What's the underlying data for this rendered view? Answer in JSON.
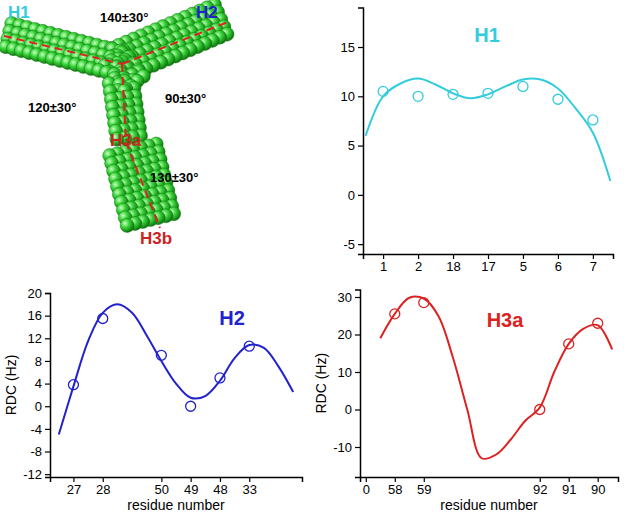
{
  "diagram": {
    "labels": [
      {
        "text": "H1",
        "color": "#33ccdd"
      },
      {
        "text": "140±30°",
        "color": "#000000"
      },
      {
        "text": "H2",
        "color": "#2222cc"
      },
      {
        "text": "120±30°",
        "color": "#000000"
      },
      {
        "text": "90±30°",
        "color": "#000000"
      },
      {
        "text": "H3a",
        "color": "#cc2222"
      },
      {
        "text": "130±30°",
        "color": "#000000"
      },
      {
        "text": "H3b",
        "color": "#cc2222"
      }
    ]
  },
  "chart_data": [
    {
      "type": "line",
      "title": "H1",
      "categories": [
        null,
        "1",
        null,
        "2",
        null,
        "18",
        null,
        "17",
        null,
        "5",
        null,
        "6",
        null,
        "7",
        null
      ],
      "series": [
        {
          "type": "scatter",
          "marker": "circle",
          "color": "#33ccdd",
          "values": [
            null,
            10.5,
            null,
            10.0,
            null,
            10.2,
            null,
            10.3,
            null,
            11.0,
            null,
            9.7,
            null,
            7.6,
            null
          ]
        },
        {
          "type": "line",
          "color": "#33ccdd",
          "values": [
            6.0,
            10.0,
            11.3,
            11.8,
            11.2,
            10.3,
            9.8,
            10.2,
            11.0,
            11.7,
            11.7,
            10.8,
            8.8,
            6.3,
            1.4
          ]
        }
      ],
      "ylim": [
        -6,
        19
      ],
      "yticks": [
        -5,
        0,
        5,
        10,
        15
      ]
    },
    {
      "type": "line",
      "title": "H2",
      "xlabel": "residue number",
      "ylabel": "RDC (Hz)",
      "categories": [
        null,
        "27",
        null,
        "28",
        null,
        null,
        null,
        "50",
        null,
        "49",
        null,
        "48",
        null,
        "33",
        null,
        null,
        null
      ],
      "series": [
        {
          "type": "scatter",
          "marker": "circle",
          "color": "#2222cc",
          "values": [
            null,
            3.8,
            null,
            15.5,
            null,
            null,
            null,
            9.0,
            null,
            0.0,
            null,
            5.0,
            null,
            10.6,
            null,
            null,
            null
          ]
        },
        {
          "type": "line",
          "color": "#2222cc",
          "values": [
            -5.0,
            3.5,
            11.5,
            16.5,
            18.0,
            16.5,
            12.5,
            8.0,
            4.0,
            1.5,
            1.8,
            4.5,
            8.5,
            10.8,
            10.3,
            7.0,
            2.5
          ]
        }
      ],
      "ylim": [
        -12.5,
        20
      ],
      "yticks": [
        -12,
        -8,
        -4,
        0,
        4,
        8,
        12,
        16,
        20
      ]
    },
    {
      "type": "line",
      "title": "H3a",
      "xlabel": "residue number",
      "ylabel": "RDC (Hz)",
      "categories": [
        "0",
        null,
        "58",
        null,
        "59",
        null,
        null,
        null,
        null,
        null,
        null,
        null,
        "92",
        null,
        "91",
        null,
        "90",
        null
      ],
      "series": [
        {
          "type": "scatter",
          "marker": "circle",
          "color": "#dd2222",
          "values": [
            null,
            null,
            25.5,
            null,
            28.5,
            null,
            null,
            null,
            null,
            null,
            null,
            null,
            0.0,
            null,
            17.5,
            null,
            23.0,
            null
          ]
        },
        {
          "type": "line",
          "color": "#dd2222",
          "values": [
            null,
            19.0,
            25.5,
            29.8,
            29.6,
            25.0,
            14.0,
            0.0,
            -13.0,
            -12.0,
            -8.0,
            -3.0,
            0.5,
            10.0,
            17.5,
            21.5,
            22.5,
            16.0
          ]
        }
      ],
      "ylim": [
        -18,
        32
      ],
      "yticks": [
        -10,
        0,
        10,
        20,
        30
      ]
    }
  ]
}
